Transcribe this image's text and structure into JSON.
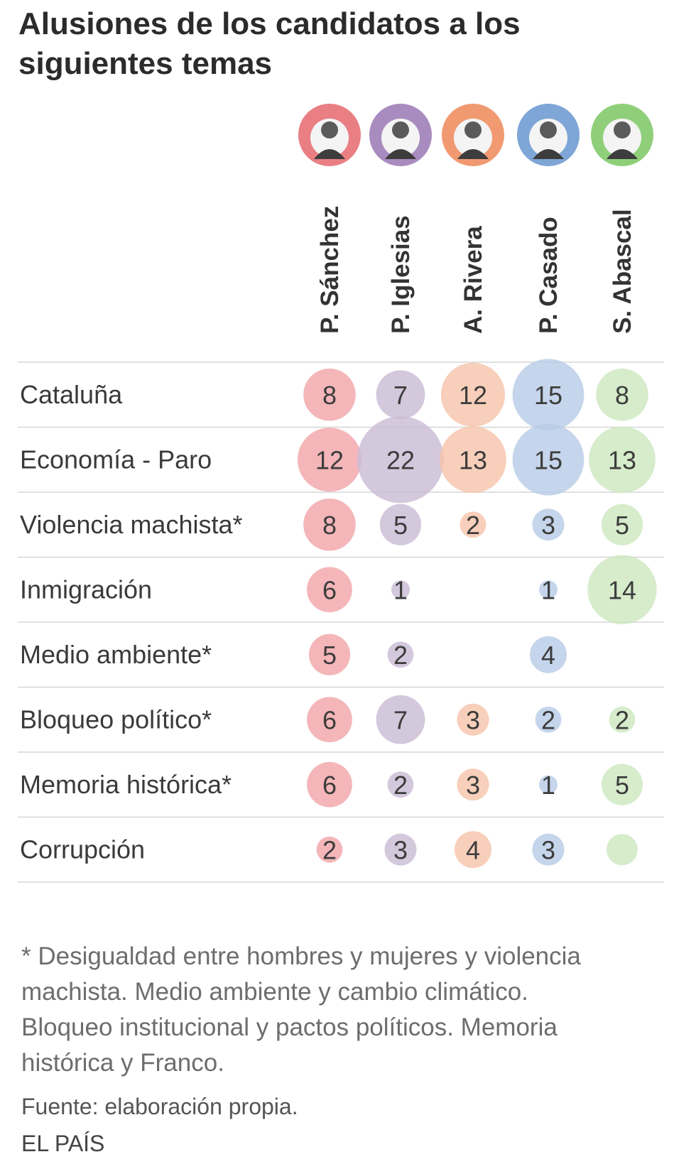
{
  "title": "Alusiones de los candidatos a los siguientes temas",
  "chart_data": {
    "type": "bubble-matrix",
    "title": "Alusiones de los candidatos a los siguientes temas",
    "candidates": [
      {
        "name": "P. Sánchez",
        "color": "#f2a6aa",
        "avatar": "#e97f83"
      },
      {
        "name": "P. Iglesias",
        "color": "#cbbcd6",
        "avatar": "#a98cbf"
      },
      {
        "name": "A. Rivera",
        "color": "#f7c4ab",
        "avatar": "#f19a72"
      },
      {
        "name": "P. Casado",
        "color": "#b8cce6",
        "avatar": "#7ea6d6"
      },
      {
        "name": "S. Abascal",
        "color": "#cde8bf",
        "avatar": "#8fcf7a"
      }
    ],
    "topics": [
      "Cataluña",
      "Economía - Paro",
      "Violencia machista*",
      "Inmigración",
      "Medio ambiente*",
      "Bloqueo político*",
      "Memoria histórica*",
      "Corrupción"
    ],
    "values": [
      [
        8,
        7,
        12,
        15,
        8
      ],
      [
        12,
        22,
        13,
        15,
        13
      ],
      [
        8,
        5,
        2,
        3,
        5
      ],
      [
        6,
        1,
        null,
        1,
        14
      ],
      [
        5,
        2,
        null,
        4,
        null
      ],
      [
        6,
        7,
        3,
        2,
        2
      ],
      [
        6,
        2,
        3,
        1,
        5
      ],
      [
        2,
        3,
        4,
        3,
        null
      ]
    ],
    "unlabeled_bubbles": [
      {
        "topic": "Corrupción",
        "candidate": "S. Abascal"
      }
    ]
  },
  "footnote": "* Desigualdad entre hombres y mujeres y violencia machista. Medio ambiente y cambio climático. Bloqueo institucional y pactos políticos. Memoria histórica y Franco.",
  "source": "Fuente: elaboración propia.",
  "brand": "EL PAÍS"
}
